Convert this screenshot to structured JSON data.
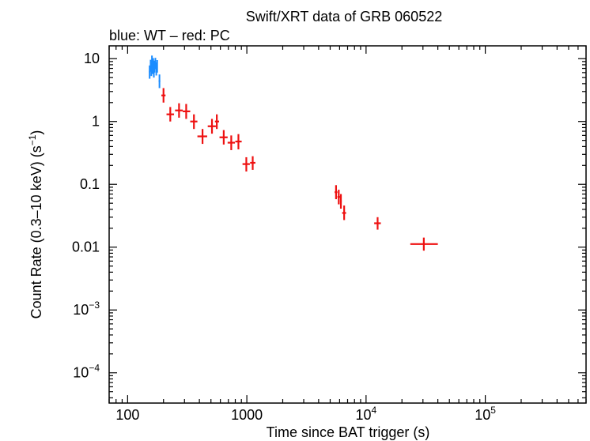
{
  "chart_data": {
    "type": "scatter",
    "title": "Swift/XRT data of GRB 060522",
    "subtitle": "blue: WT – red: PC",
    "xlabel": "Time since BAT trigger (s)",
    "ylabel": "Count Rate (0.3–10 keV) (s",
    "ylabel_unit_exp": "−1",
    "ylabel_close": ")",
    "xscale": "log",
    "yscale": "log",
    "xlim": [
      70,
      700000
    ],
    "ylim": [
      3.3e-05,
      16
    ],
    "x_ticks": [
      {
        "value": 100,
        "label": "100"
      },
      {
        "value": 1000,
        "label": "1000"
      },
      {
        "value": 10000,
        "base": "10",
        "exp": "4"
      },
      {
        "value": 100000,
        "base": "10",
        "exp": "5"
      }
    ],
    "y_ticks": [
      {
        "value": 10,
        "label": "10"
      },
      {
        "value": 1,
        "label": "1"
      },
      {
        "value": 0.1,
        "label": "0.1"
      },
      {
        "value": 0.01,
        "label": "0.01"
      },
      {
        "value": 0.001,
        "base": "10",
        "exp": "−3"
      },
      {
        "value": 0.0001,
        "base": "10",
        "exp": "−4"
      }
    ],
    "series": [
      {
        "name": "WT",
        "color": "#1a8cff",
        "points": [
          {
            "x": 153,
            "y": 6.2,
            "xerr": [
              151,
              155
            ],
            "yerr": [
              4.8,
              7.8
            ]
          },
          {
            "x": 156,
            "y": 7.8,
            "xerr": [
              154,
              158
            ],
            "yerr": [
              6.2,
              9.6
            ]
          },
          {
            "x": 158,
            "y": 6.8,
            "xerr": [
              156,
              160
            ],
            "yerr": [
              5.3,
              8.5
            ]
          },
          {
            "x": 160,
            "y": 9.0,
            "xerr": [
              158,
              162
            ],
            "yerr": [
              7.2,
              11.2
            ]
          },
          {
            "x": 162,
            "y": 7.2,
            "xerr": [
              160,
              164
            ],
            "yerr": [
              5.7,
              9.0
            ]
          },
          {
            "x": 164,
            "y": 8.2,
            "xerr": [
              162,
              166
            ],
            "yerr": [
              6.5,
              10.2
            ]
          },
          {
            "x": 166,
            "y": 6.4,
            "xerr": [
              164,
              168
            ],
            "yerr": [
              5.0,
              8.0
            ]
          },
          {
            "x": 168,
            "y": 7.5,
            "xerr": [
              166,
              170
            ],
            "yerr": [
              6.0,
              9.3
            ]
          },
          {
            "x": 171,
            "y": 8.4,
            "xerr": [
              169,
              173
            ],
            "yerr": [
              6.8,
              10.3
            ]
          },
          {
            "x": 174,
            "y": 6.9,
            "xerr": [
              172,
              176
            ],
            "yerr": [
              5.4,
              8.7
            ]
          },
          {
            "x": 177,
            "y": 7.6,
            "xerr": [
              175,
              179
            ],
            "yerr": [
              6.0,
              9.5
            ]
          },
          {
            "x": 185,
            "y": 4.4,
            "xerr": [
              182,
              188
            ],
            "yerr": [
              3.4,
              5.6
            ]
          }
        ]
      },
      {
        "name": "PC",
        "color": "#ee1111",
        "points": [
          {
            "x": 200,
            "y": 2.6,
            "xerr": [
              192,
              208
            ],
            "yerr": [
              2.0,
              3.4
            ]
          },
          {
            "x": 228,
            "y": 1.3,
            "xerr": [
              212,
              245
            ],
            "yerr": [
              1.0,
              1.7
            ]
          },
          {
            "x": 270,
            "y": 1.5,
            "xerr": [
              250,
              290
            ],
            "yerr": [
              1.15,
              1.95
            ]
          },
          {
            "x": 310,
            "y": 1.45,
            "xerr": [
              290,
              335
            ],
            "yerr": [
              1.1,
              1.9
            ]
          },
          {
            "x": 360,
            "y": 1.0,
            "xerr": [
              335,
              385
            ],
            "yerr": [
              0.76,
              1.3
            ]
          },
          {
            "x": 425,
            "y": 0.58,
            "xerr": [
              385,
              465
            ],
            "yerr": [
              0.44,
              0.76
            ]
          },
          {
            "x": 510,
            "y": 0.84,
            "xerr": [
              470,
              550
            ],
            "yerr": [
              0.64,
              1.1
            ]
          },
          {
            "x": 560,
            "y": 1.0,
            "xerr": [
              540,
              585
            ],
            "yerr": [
              0.76,
              1.3
            ]
          },
          {
            "x": 640,
            "y": 0.56,
            "xerr": [
              590,
              690
            ],
            "yerr": [
              0.43,
              0.73
            ]
          },
          {
            "x": 740,
            "y": 0.46,
            "xerr": [
              690,
              795
            ],
            "yerr": [
              0.35,
              0.6
            ]
          },
          {
            "x": 850,
            "y": 0.48,
            "xerr": [
              800,
              905
            ],
            "yerr": [
              0.36,
              0.63
            ]
          },
          {
            "x": 990,
            "y": 0.21,
            "xerr": [
              920,
              1060
            ],
            "yerr": [
              0.16,
              0.27
            ]
          },
          {
            "x": 1120,
            "y": 0.22,
            "xerr": [
              1065,
              1180
            ],
            "yerr": [
              0.17,
              0.28
            ]
          },
          {
            "x": 5600,
            "y": 0.075,
            "xerr": [
              5450,
              5750
            ],
            "yerr": [
              0.058,
              0.097
            ]
          },
          {
            "x": 5900,
            "y": 0.063,
            "xerr": [
              5750,
              6050
            ],
            "yerr": [
              0.048,
              0.082
            ]
          },
          {
            "x": 6150,
            "y": 0.054,
            "xerr": [
              6050,
              6250
            ],
            "yerr": [
              0.041,
              0.07
            ]
          },
          {
            "x": 6550,
            "y": 0.035,
            "xerr": [
              6300,
              6800
            ],
            "yerr": [
              0.027,
              0.046
            ]
          },
          {
            "x": 12500,
            "y": 0.024,
            "xerr": [
              11700,
              13300
            ],
            "yerr": [
              0.019,
              0.03
            ]
          },
          {
            "x": 30500,
            "y": 0.0112,
            "xerr": [
              23500,
              40000
            ],
            "yerr": [
              0.0088,
              0.0142
            ]
          }
        ]
      }
    ]
  }
}
